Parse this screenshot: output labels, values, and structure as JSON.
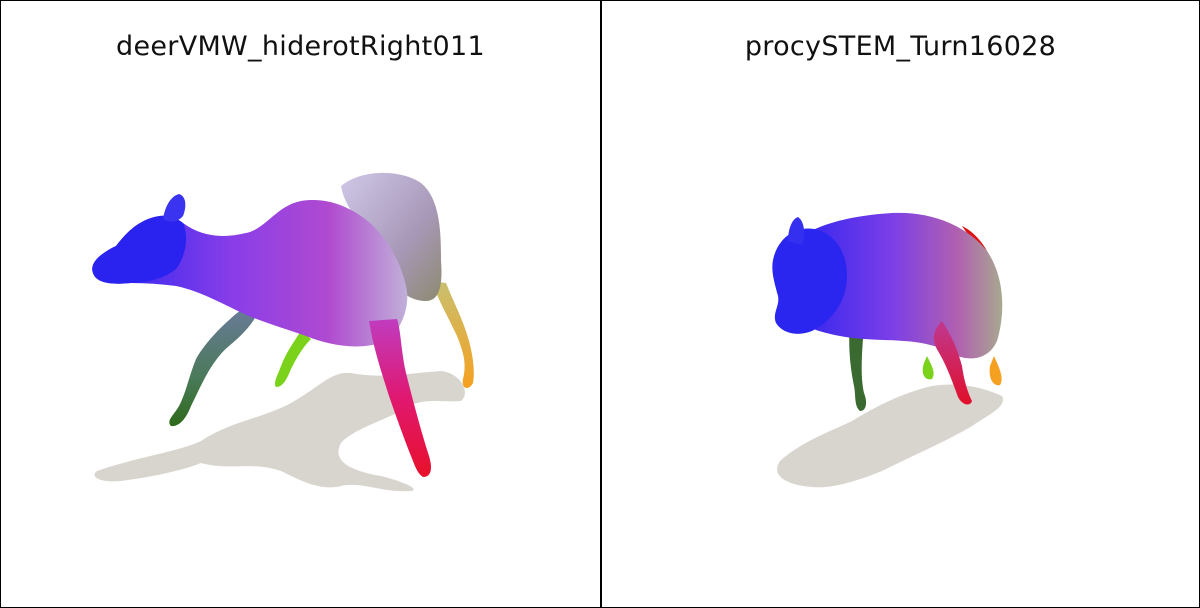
{
  "panels": [
    {
      "title": "deerVMW_hiderotRight011",
      "model": "deer"
    },
    {
      "title": "procySTEM_Turn16028",
      "model": "raccoon"
    }
  ],
  "colors": {
    "shadow": "#d8d5cf",
    "head": "#1e1ef0",
    "body": "#9a44e6",
    "hind": "#c8b8d8",
    "front_leg": "#e0105a",
    "hoof_front": "#e8122a",
    "leg_green": "#3a7a20",
    "leg_lime": "#7ad31a",
    "leg_yellow": "#f0c030",
    "hoof_orange": "#f5a020",
    "tail_red": "#e01010"
  }
}
